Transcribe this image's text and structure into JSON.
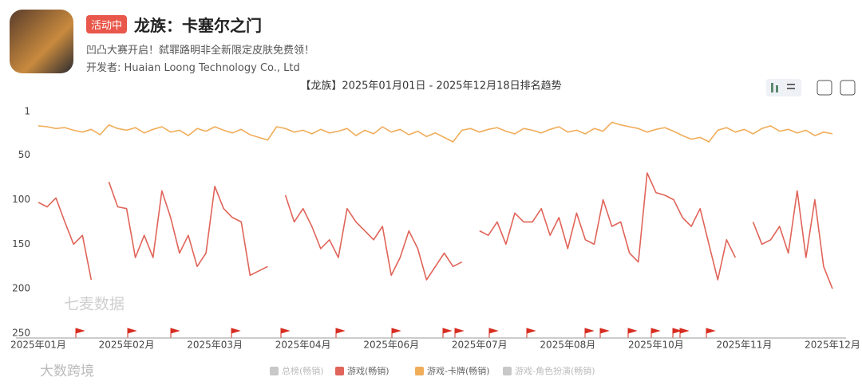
{
  "header": {
    "tag": "活动中",
    "title": "龙族：卡塞尔之门",
    "subtitle": "凹凸大赛开启！弑罪路明非全新限定皮肤免费领！",
    "developer": "开发者: Huaian Loong Technology Co., Ltd"
  },
  "footer_watermark": "大数跨境",
  "chart_data": {
    "type": "line",
    "title": "【龙族】2025年01月01日 - 2025年12月18日排名趋势",
    "watermark": "七麦数据",
    "categories": [
      "2025年01月",
      null,
      null,
      null,
      null,
      null,
      null,
      null,
      null,
      null,
      "2025年02月",
      null,
      null,
      null,
      null,
      null,
      null,
      null,
      null,
      null,
      "2025年03月",
      null,
      null,
      null,
      null,
      null,
      null,
      null,
      null,
      null,
      "2025年04月",
      null,
      null,
      null,
      null,
      null,
      null,
      null,
      null,
      null,
      "2025年06月",
      null,
      null,
      null,
      null,
      null,
      null,
      null,
      null,
      null,
      "2025年07月",
      null,
      null,
      null,
      null,
      null,
      null,
      null,
      null,
      null,
      "2025年08月",
      null,
      null,
      null,
      null,
      null,
      null,
      null,
      null,
      null,
      "2025年10月",
      null,
      null,
      null,
      null,
      null,
      null,
      null,
      null,
      null,
      "2025年11月",
      null,
      null,
      null,
      null,
      null,
      null,
      null,
      null,
      null,
      "2025年12月"
    ],
    "ylim": [
      250,
      1
    ],
    "yticks": [
      1,
      50,
      100,
      150,
      200,
      250
    ],
    "grid": false,
    "series": [
      {
        "name": "游戏(畅销)",
        "color": "#e06459",
        "values": [
          103,
          108,
          98,
          125,
          150,
          140,
          190,
          null,
          80,
          108,
          110,
          165,
          140,
          165,
          90,
          120,
          160,
          140,
          175,
          160,
          85,
          110,
          120,
          125,
          185,
          180,
          175,
          null,
          95,
          125,
          110,
          130,
          155,
          145,
          165,
          110,
          125,
          135,
          145,
          130,
          185,
          165,
          135,
          155,
          190,
          175,
          160,
          175,
          170,
          null,
          135,
          140,
          125,
          150,
          115,
          125,
          125,
          110,
          140,
          120,
          155,
          115,
          145,
          150,
          100,
          130,
          125,
          160,
          170,
          70,
          92,
          95,
          100,
          120,
          130,
          110,
          150,
          190,
          145,
          165,
          null,
          125,
          150,
          145,
          130,
          160,
          90,
          165,
          100,
          175,
          200
        ]
      },
      {
        "name": "游戏-卡牌(畅销)",
        "color": "#f0ad5a",
        "values": [
          17,
          18,
          20,
          19,
          22,
          24,
          21,
          27,
          16,
          20,
          22,
          19,
          25,
          21,
          18,
          24,
          22,
          28,
          20,
          23,
          18,
          22,
          25,
          21,
          27,
          30,
          33,
          18,
          20,
          24,
          22,
          26,
          21,
          25,
          23,
          20,
          28,
          22,
          26,
          18,
          24,
          21,
          27,
          23,
          29,
          25,
          30,
          35,
          22,
          20,
          24,
          21,
          19,
          23,
          26,
          20,
          22,
          25,
          21,
          18,
          24,
          22,
          26,
          20,
          23,
          13,
          16,
          18,
          20,
          24,
          21,
          19,
          23,
          28,
          32,
          30,
          35,
          22,
          19,
          24,
          21,
          26,
          20,
          17,
          23,
          21,
          25,
          22,
          28,
          24,
          26
        ]
      }
    ],
    "hidden_series": [
      {
        "name": "总榜(畅销)",
        "color": "#c8c8c8"
      },
      {
        "name": "游戏-角色扮演(畅销)",
        "color": "#c8c8c8"
      }
    ]
  }
}
